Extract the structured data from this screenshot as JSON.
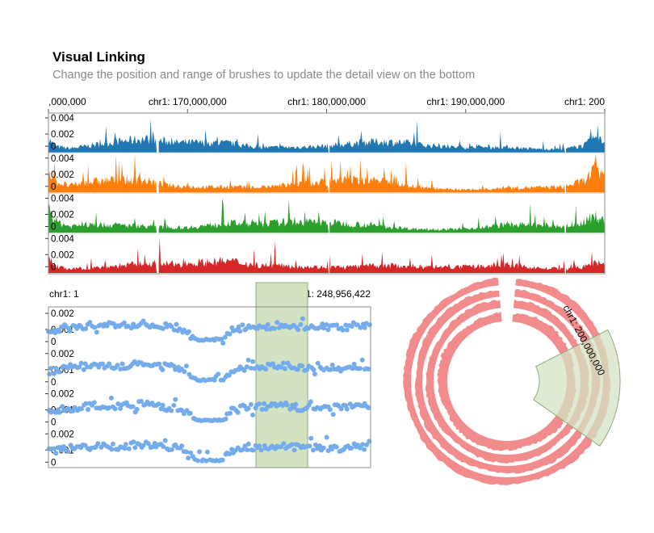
{
  "header": {
    "title": "Visual Linking",
    "subtitle": "Change the position and range of brushes to update the detail view on the bottom"
  },
  "colors": {
    "series": [
      "#1f77b4",
      "#ff7f0e",
      "#2ca02c",
      "#d62728"
    ],
    "scatter": "#74abeb",
    "circular": "#f28b8b",
    "brush_fill": "#d3e3c2",
    "brush_stroke": "#92a97c"
  },
  "chart_data": [
    {
      "type": "area",
      "panel": "top-linear-tracks",
      "x_tick_labels": [
        ",000,000",
        "chr1: 170,000,000",
        "chr1: 180,000,000",
        "chr1: 190,000,000",
        "chr1: 200"
      ],
      "xlim": [
        160000000,
        200000000
      ],
      "tracks": 4,
      "y_tick_labels": [
        "0.004",
        "0.002",
        "0"
      ],
      "ylim": [
        0,
        0.005
      ],
      "gaps": [
        167800000,
        180150000,
        197150000
      ],
      "profile": [
        [
          160000000,
          0.0035
        ],
        [
          160500000,
          0.0015
        ],
        [
          161500000,
          0.0009
        ],
        [
          163000000,
          0.0013
        ],
        [
          165000000,
          0.0016
        ],
        [
          167000000,
          0.0017
        ],
        [
          169000000,
          0.0012
        ],
        [
          171000000,
          0.0013
        ],
        [
          173000000,
          0.0015
        ],
        [
          175000000,
          0.0011
        ],
        [
          177000000,
          0.0013
        ],
        [
          179000000,
          0.0014
        ],
        [
          181000000,
          0.0015
        ],
        [
          183000000,
          0.0016
        ],
        [
          185000000,
          0.0013
        ],
        [
          187000000,
          0.0009
        ],
        [
          189000000,
          0.0007
        ],
        [
          191000000,
          0.0008
        ],
        [
          193000000,
          0.0011
        ],
        [
          195000000,
          0.0009
        ],
        [
          197000000,
          0.0008
        ],
        [
          198500000,
          0.0015
        ],
        [
          199300000,
          0.0028
        ],
        [
          200000000,
          0.0018
        ]
      ]
    },
    {
      "type": "scatter",
      "panel": "bottom-left-linear-detail",
      "x_start_label": "chr1: 1",
      "x_end_label": "chr1: 248,956,422",
      "xlim": [
        1,
        248956422
      ],
      "tracks": 4,
      "y_tick_labels": [
        "0.002",
        "0.001",
        "0"
      ],
      "ylim": [
        0,
        0.0025
      ],
      "brush": [
        160000000,
        200000000
      ],
      "profile": [
        [
          0,
          0.0009
        ],
        [
          10000000,
          0.0011
        ],
        [
          25000000,
          0.0013
        ],
        [
          40000000,
          0.0014
        ],
        [
          55000000,
          0.0013
        ],
        [
          70000000,
          0.0015
        ],
        [
          85000000,
          0.0013
        ],
        [
          100000000,
          0.0012
        ],
        [
          115000000,
          0.0003
        ],
        [
          125000000,
          0.0003
        ],
        [
          135000000,
          0.0003
        ],
        [
          140000000,
          0.0009
        ],
        [
          150000000,
          0.0012
        ],
        [
          165000000,
          0.0013
        ],
        [
          180000000,
          0.0014
        ],
        [
          195000000,
          0.0012
        ],
        [
          210000000,
          0.0013
        ],
        [
          225000000,
          0.0012
        ],
        [
          240000000,
          0.0014
        ],
        [
          248956422,
          0.0012
        ]
      ]
    },
    {
      "type": "area",
      "panel": "bottom-right-circular",
      "layout": "circular",
      "tracks": 4,
      "brush_label": "chr1: 200,000,000",
      "brush": [
        160000000,
        200000000
      ]
    }
  ]
}
